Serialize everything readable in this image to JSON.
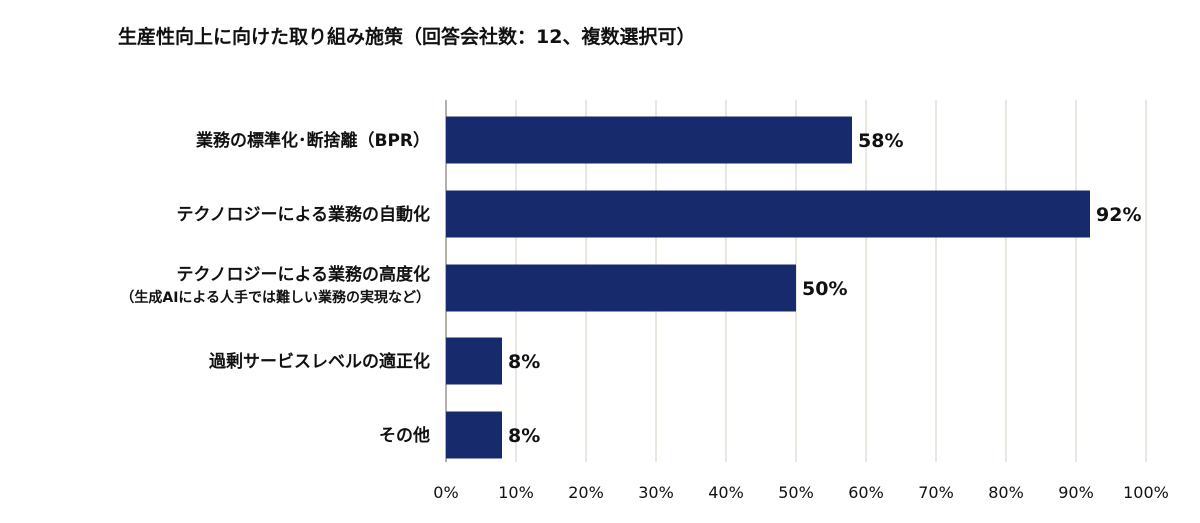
{
  "chart_data": {
    "type": "bar",
    "orientation": "horizontal",
    "title": "生産性向上に向けた取り組み施策（回答会社数：12、複数選択可）",
    "categories": [
      "業務の標準化･断捨離（BPR）",
      "テクノロジーによる業務の自動化",
      "テクノロジーによる業務の高度化",
      "過剰サービスレベルの適正化",
      "その他"
    ],
    "category_sublabels": [
      "",
      "",
      "（生成AIによる人手では難しい業務の実現など）",
      "",
      ""
    ],
    "values": [
      58,
      92,
      50,
      8,
      8
    ],
    "value_labels": [
      "58%",
      "92%",
      "50%",
      "8%",
      "8%"
    ],
    "xlim": [
      0,
      100
    ],
    "xticks": [
      "0%",
      "10%",
      "20%",
      "30%",
      "40%",
      "50%",
      "60%",
      "70%",
      "80%",
      "90%",
      "100%"
    ],
    "grid": true,
    "bar_color": "#172a6b",
    "grid_color": "#e4ded6",
    "axis_color": "#b5b0a8"
  }
}
